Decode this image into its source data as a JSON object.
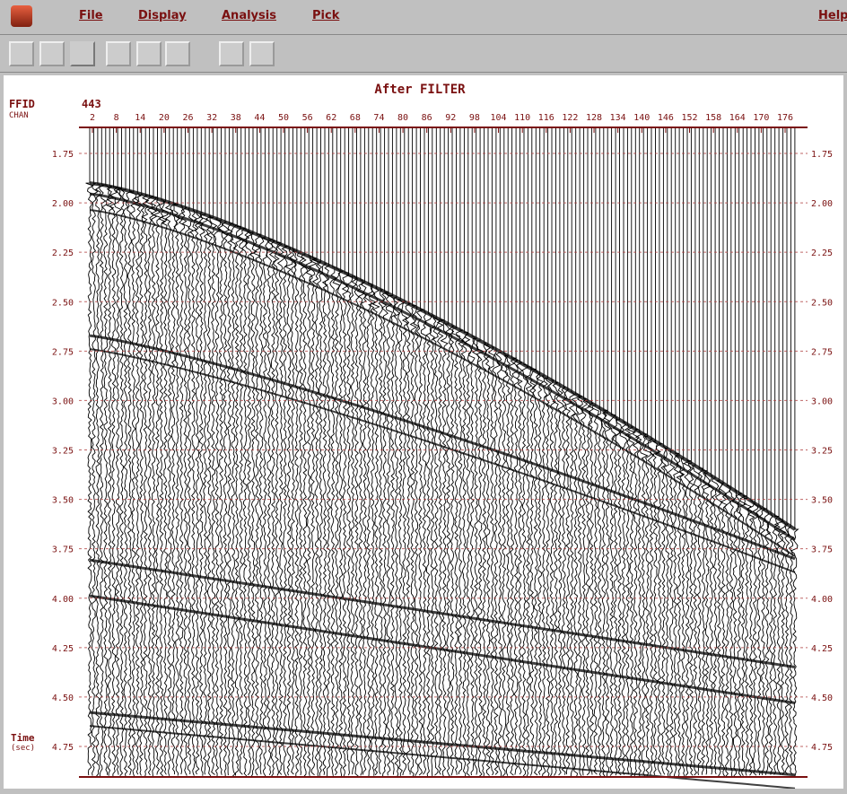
{
  "menu": {
    "items": [
      "File",
      "Display",
      "Analysis",
      "Pick"
    ],
    "help": "Help"
  },
  "plot": {
    "title": "After FILTER",
    "ffid_label": "FFID",
    "ffid_value": "443",
    "chan_label": "CHAN",
    "chan_ticks": [
      2,
      8,
      14,
      20,
      26,
      32,
      38,
      44,
      50,
      56,
      62,
      68,
      74,
      80,
      86,
      92,
      98,
      104,
      110,
      116,
      122,
      128,
      134,
      140,
      146,
      152,
      158,
      164,
      170,
      176
    ],
    "time_ticks": [
      {
        "value": 1.75,
        "label": "1.75"
      },
      {
        "value": 2,
        "label": "2.00"
      },
      {
        "value": 2.25,
        "label": "2.25"
      },
      {
        "value": 2.5,
        "label": "2.50"
      },
      {
        "value": 2.75,
        "label": "2.75"
      },
      {
        "value": 3,
        "label": "3.00"
      },
      {
        "value": 3.25,
        "label": "3.25"
      },
      {
        "value": 3.5,
        "label": "3.50"
      },
      {
        "value": 3.75,
        "label": "3.75"
      },
      {
        "value": 4,
        "label": "4.00"
      },
      {
        "value": 4.25,
        "label": "4.25"
      },
      {
        "value": 4.5,
        "label": "4.50"
      },
      {
        "value": 4.75,
        "label": "4.75"
      }
    ],
    "time_label": "Time",
    "time_unit": "(sec)"
  }
}
